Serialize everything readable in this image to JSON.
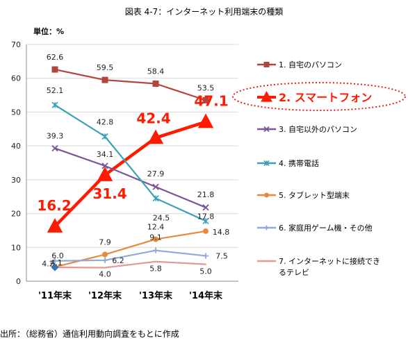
{
  "figure": {
    "title": "図表 4-7：インターネット利用端末の種類",
    "source": "出所：（総務省）通信利用動向調査をもとに作成"
  },
  "chart_data": {
    "type": "line",
    "unit_label": "単位：%",
    "categories": [
      "'11年末",
      "'12年末",
      "'13年末",
      "'14年末"
    ],
    "ylim": [
      0,
      70
    ],
    "yticks": [
      0,
      10,
      20,
      30,
      40,
      50,
      60,
      70
    ],
    "grid": true,
    "legend_position": "right",
    "series": [
      {
        "name": "1. 自宅のパソコン",
        "values": [
          62.6,
          59.5,
          58.4,
          53.5
        ],
        "labels": [
          "62.6",
          "59.5",
          "58.4",
          "53.5"
        ],
        "color": "#b5443d",
        "marker": "square",
        "highlight": false
      },
      {
        "name": "2. スマートフォン",
        "values": [
          16.2,
          31.4,
          42.4,
          47.1
        ],
        "labels": [
          "16.2",
          "31.4",
          "42.4",
          "47.1"
        ],
        "color": "#ff1a00",
        "marker": "triangle",
        "highlight": true
      },
      {
        "name": "3. 自宅以外のパソコン",
        "values": [
          39.3,
          34.1,
          27.9,
          21.8
        ],
        "labels": [
          "39.3",
          "34.1",
          "27.9",
          "21.8"
        ],
        "color": "#7a5597",
        "marker": "x",
        "highlight": false
      },
      {
        "name": "4. 携帯電話",
        "values": [
          52.1,
          42.8,
          24.5,
          17.8
        ],
        "labels": [
          "52.1",
          "42.8",
          "24.5",
          "17.8"
        ],
        "color": "#3aa2b7",
        "marker": "star",
        "highlight": false
      },
      {
        "name": "5. タブレット型端末",
        "values": [
          4.2,
          7.9,
          12.4,
          14.8
        ],
        "labels": [
          "4.2",
          "7.9",
          "12.4",
          "14.8"
        ],
        "color": "#e68a3a",
        "marker": "circle",
        "highlight": false
      },
      {
        "name": "6. 家庭用ゲーム機・その他",
        "values": [
          6.0,
          6.2,
          9.1,
          7.5
        ],
        "labels": [
          "6.0",
          "6.2",
          "9.1",
          "7.5"
        ],
        "color": "#8eaad6",
        "marker": "plus",
        "highlight": false
      },
      {
        "name": "7. インターネットに接続できるテレビ",
        "values": [
          4.1,
          4.0,
          5.8,
          5.0
        ],
        "labels": [
          "4.1",
          "4.0",
          "5.8",
          "5.0"
        ],
        "color": "#df9a9a",
        "marker": "none",
        "first_marker": "diamond",
        "first_marker_color": "#3b6fb5",
        "highlight": false
      }
    ]
  }
}
